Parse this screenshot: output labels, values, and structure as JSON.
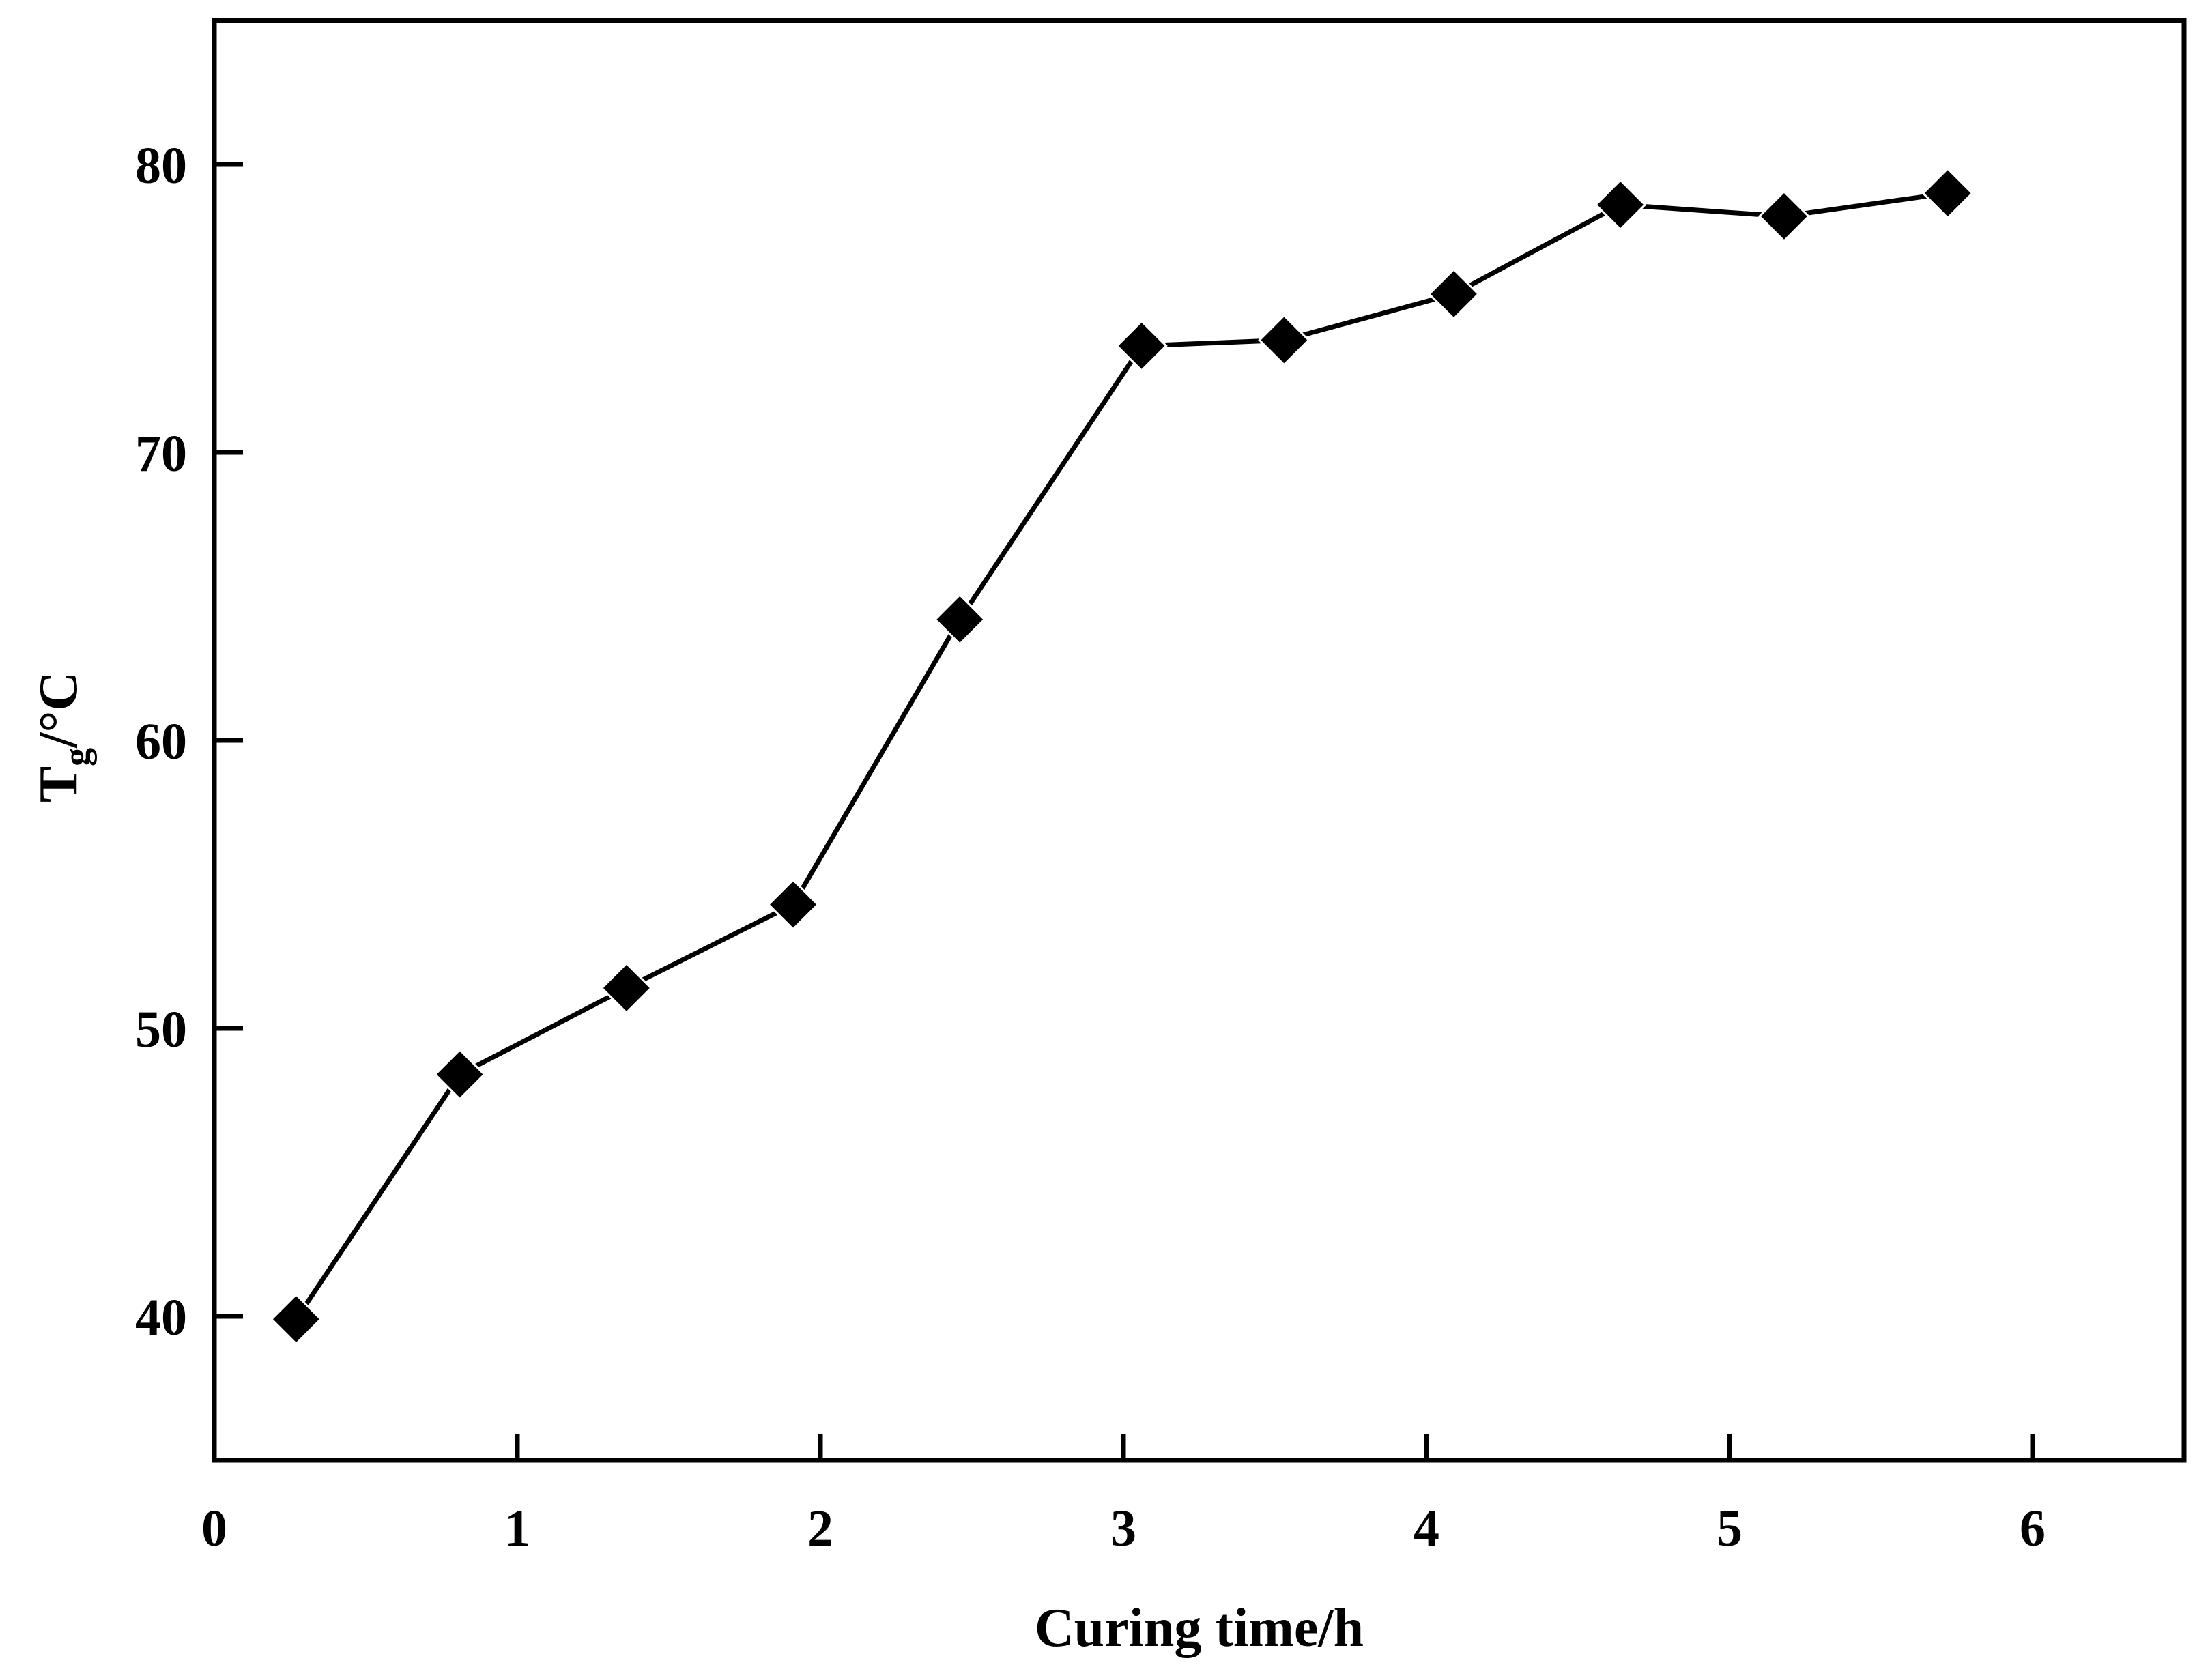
{
  "chart_data": {
    "type": "line",
    "xlabel": "Curing time/h",
    "ylabel": {
      "main": "T",
      "sub": "g",
      "unit": "/°C"
    },
    "xlim": [
      0,
      6.5
    ],
    "ylim": [
      35,
      85
    ],
    "xticks": [
      0,
      1,
      2,
      3,
      4,
      5,
      6
    ],
    "yticks": [
      40,
      50,
      60,
      70,
      80
    ],
    "grid": false,
    "legend": "none",
    "marker": "diamond",
    "colors": {
      "line": "#000000",
      "marker": "#000000",
      "axes": "#000000"
    },
    "series": [
      {
        "x": [
          0.27,
          0.81,
          1.36,
          1.91,
          2.46,
          3.06,
          3.53,
          4.09,
          4.64,
          5.18,
          5.72
        ],
        "y": [
          39.9,
          48.4,
          51.4,
          54.3,
          64.2,
          73.7,
          73.9,
          75.5,
          78.6,
          78.2,
          79.0
        ]
      }
    ]
  }
}
